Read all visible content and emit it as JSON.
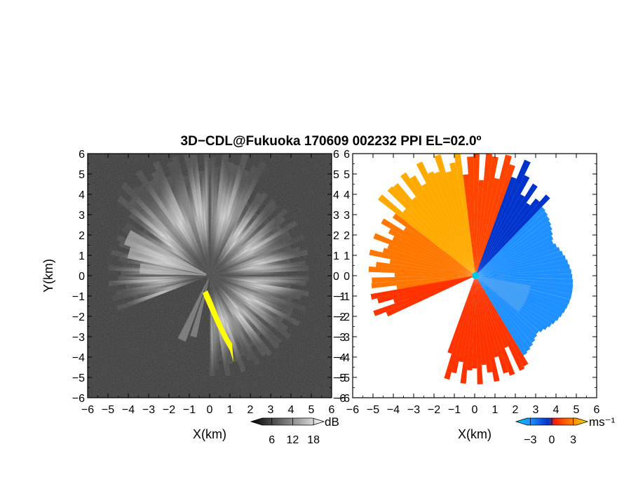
{
  "chart_data": [
    {
      "type": "heatmap",
      "panel": "reflectivity",
      "title": "3D−CDL@Fukuoka 170609 002232 PPI EL=02.0º",
      "xlabel": "X(km)",
      "ylabel": "Y(km)",
      "xlim": [
        -6,
        6
      ],
      "ylim": [
        -6,
        6
      ],
      "x_ticks": [
        "−6",
        "−5",
        "−4",
        "−3",
        "−2",
        "−1",
        "0",
        "1",
        "2",
        "3",
        "4",
        "5",
        "6"
      ],
      "y_ticks": [
        "6",
        "5",
        "4",
        "3",
        "2",
        "1",
        "0",
        "−1",
        "−2",
        "−3",
        "−4",
        "−5",
        "−6"
      ],
      "colorbar": {
        "unit": "dB",
        "ticks": [
          "6",
          "12",
          "18"
        ],
        "values": [
          6,
          12,
          18
        ],
        "range": [
          0,
          21
        ]
      },
      "colormap": [
        "#000000",
        "#404040",
        "#888888",
        "#c8c8c8",
        "#ffffff"
      ],
      "highlight_color": "#ffff00",
      "background_color": "#262626"
    },
    {
      "type": "heatmap",
      "panel": "doppler-velocity",
      "xlabel": "X(km)",
      "xlim": [
        -6,
        6
      ],
      "ylim": [
        -6,
        6
      ],
      "x_ticks": [
        "−6",
        "−5",
        "−4",
        "−3",
        "−2",
        "−1",
        "0",
        "1",
        "2",
        "3",
        "4",
        "5",
        "6"
      ],
      "y_ticks": [
        "6",
        "5",
        "4",
        "3",
        "2",
        "1",
        "0",
        "−1",
        "−2",
        "−3",
        "−4",
        "−5",
        "−6"
      ],
      "colorbar": {
        "unit": "ms⁻¹",
        "ticks": [
          "−3",
          "0",
          "3"
        ],
        "values": [
          -3,
          0,
          3
        ],
        "range": [
          -5,
          5
        ]
      },
      "colormap": [
        "#00c8ff",
        "#1e90ff",
        "#0033cc",
        "#ff2200",
        "#ff8800",
        "#ffdd00"
      ],
      "radar_color": "#00c8e8"
    }
  ]
}
